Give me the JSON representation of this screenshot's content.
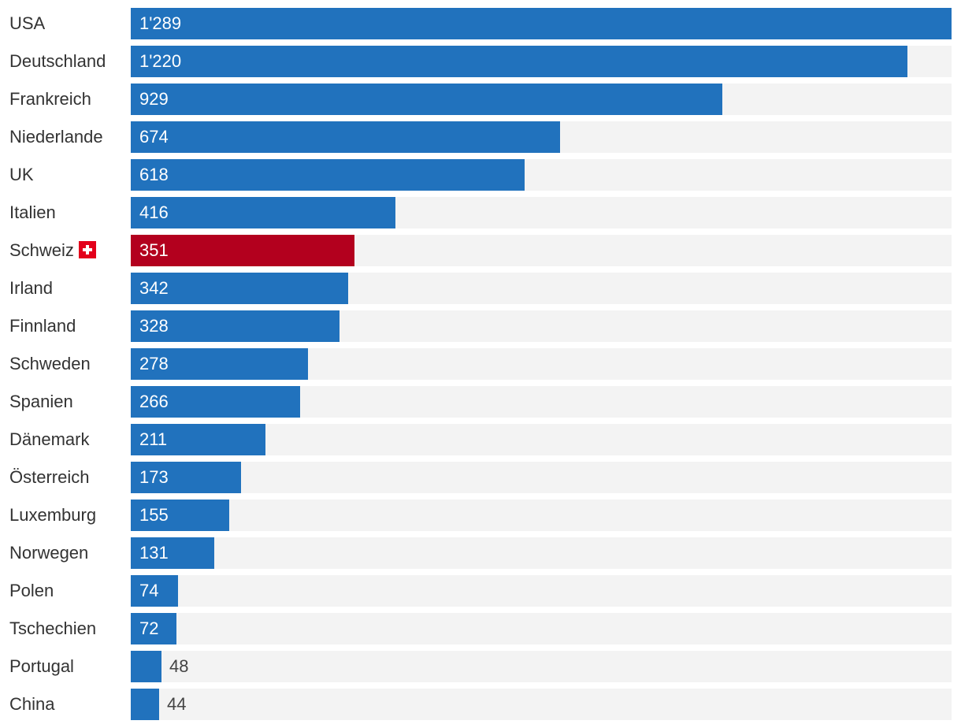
{
  "chart_data": {
    "type": "bar",
    "orientation": "horizontal",
    "categories": [
      "USA",
      "Deutschland",
      "Frankreich",
      "Niederlande",
      "UK",
      "Italien",
      "Schweiz",
      "Irland",
      "Finnland",
      "Schweden",
      "Spanien",
      "Dänemark",
      "Österreich",
      "Luxemburg",
      "Norwegen",
      "Polen",
      "Tschechien",
      "Portugal",
      "China"
    ],
    "values": [
      1289,
      1220,
      929,
      674,
      618,
      416,
      351,
      342,
      328,
      278,
      266,
      211,
      173,
      155,
      131,
      74,
      72,
      48,
      44
    ],
    "value_labels": [
      "1'289",
      "1'220",
      "929",
      "674",
      "618",
      "416",
      "351",
      "342",
      "328",
      "278",
      "266",
      "211",
      "173",
      "155",
      "131",
      "74",
      "72",
      "48",
      "44"
    ],
    "xlim": [
      0,
      1289
    ],
    "highlight": "Schweiz",
    "highlight_icon": "swiss-flag-icon",
    "grid": false,
    "colors": {
      "bar": "#2172bd",
      "highlight": "#b3001e",
      "track": "#f3f3f3",
      "flag": "#e3001b"
    }
  }
}
